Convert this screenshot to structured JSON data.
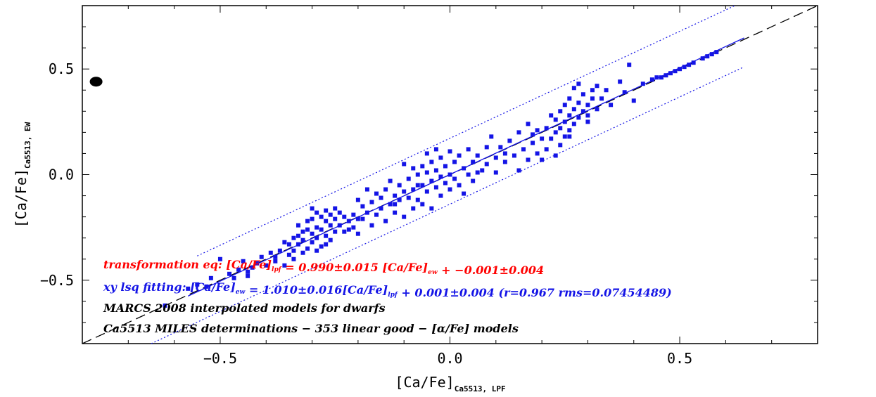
{
  "chart_data": {
    "type": "scatter",
    "title": "",
    "xlabel": {
      "main": "[Ca/Fe]",
      "sub": "Ca5513, LPF"
    },
    "ylabel": {
      "main": "[Ca/Fe]",
      "sub": "Ca5513, EW"
    },
    "xlim": [
      -0.8,
      0.8
    ],
    "ylim": [
      -0.8,
      0.8
    ],
    "x_ticks": [
      -0.5,
      0.0,
      0.5
    ],
    "y_ticks": [
      -0.5,
      0.0,
      0.5
    ],
    "x_tick_labels": [
      "−0.5",
      "0.0",
      "0.5"
    ],
    "y_tick_labels": [
      "−0.5",
      "0.0",
      "0.5"
    ],
    "grid": false,
    "colors": {
      "points": "#1414e6",
      "fit": "#1414e6",
      "identity": "#000000",
      "transformation_text": "#ff0000",
      "fit_text": "#1414e6",
      "text": "#000000"
    },
    "marker_reference": {
      "x": -0.77,
      "y": 0.44
    },
    "identity_line": {
      "x": [
        -0.8,
        0.8
      ],
      "y": [
        -0.8,
        0.8
      ],
      "style": "dashed"
    },
    "fit_line": {
      "x": [
        -0.57,
        0.64
      ],
      "y": [
        -0.575,
        0.647
      ],
      "style": "solid"
    },
    "rms_band_upper": {
      "x": [
        -0.55,
        0.62
      ],
      "y": [
        -0.385,
        0.8
      ],
      "style": "dotted"
    },
    "rms_band_lower": {
      "x": [
        -0.65,
        0.64
      ],
      "y": [
        -0.8,
        0.51
      ],
      "style": "dotted"
    },
    "annotations": [
      {
        "color": "#ff0000",
        "parts": [
          {
            "t": "transformation eq: [Ca/Fe]"
          },
          {
            "t": "lpf",
            "sub": true
          },
          {
            "t": " = 0.990±0.015 [Ca/Fe]"
          },
          {
            "t": "ew",
            "sub": true
          },
          {
            "t": " + −0.001±0.004"
          }
        ]
      },
      {
        "color": "#1414e6",
        "parts": [
          {
            "t": "xy lsq fitting: [Ca/Fe]"
          },
          {
            "t": "ew",
            "sub": true
          },
          {
            "t": " = 1.010±0.016[Ca/Fe]"
          },
          {
            "t": "lpf",
            "sub": true
          },
          {
            "t": " + 0.001±0.004 (r=0.967 rms=0.07454489)"
          }
        ]
      },
      {
        "color": "#000000",
        "parts": [
          {
            "t": "MARCS 2008 interpolated models for dwarfs"
          }
        ]
      },
      {
        "color": "#000000",
        "parts": [
          {
            "t": "Ca5513 MILES determinations − 353 linear good − [α/Fe] models"
          }
        ]
      }
    ],
    "series": [
      {
        "values": [
          [
            -0.62,
            -0.62
          ],
          [
            -0.57,
            -0.54
          ],
          [
            -0.55,
            -0.52
          ],
          [
            -0.53,
            -0.53
          ],
          [
            -0.52,
            -0.49
          ],
          [
            -0.5,
            -0.4
          ],
          [
            -0.48,
            -0.47
          ],
          [
            -0.47,
            -0.49
          ],
          [
            -0.46,
            -0.45
          ],
          [
            -0.45,
            -0.41
          ],
          [
            -0.44,
            -0.48
          ],
          [
            -0.43,
            -0.44
          ],
          [
            -0.42,
            -0.42
          ],
          [
            -0.41,
            -0.39
          ],
          [
            -0.4,
            -0.43
          ],
          [
            -0.39,
            -0.37
          ],
          [
            -0.38,
            -0.41
          ],
          [
            -0.37,
            -0.36
          ],
          [
            -0.36,
            -0.43
          ],
          [
            -0.35,
            -0.38
          ],
          [
            -0.35,
            -0.33
          ],
          [
            -0.34,
            -0.36
          ],
          [
            -0.34,
            -0.4
          ],
          [
            -0.33,
            -0.24
          ],
          [
            -0.33,
            -0.29
          ],
          [
            -0.33,
            -0.33
          ],
          [
            -0.32,
            -0.27
          ],
          [
            -0.32,
            -0.31
          ],
          [
            -0.32,
            -0.37
          ],
          [
            -0.31,
            -0.22
          ],
          [
            -0.31,
            -0.26
          ],
          [
            -0.31,
            -0.35
          ],
          [
            -0.3,
            -0.16
          ],
          [
            -0.3,
            -0.21
          ],
          [
            -0.3,
            -0.28
          ],
          [
            -0.3,
            -0.32
          ],
          [
            -0.29,
            -0.18
          ],
          [
            -0.29,
            -0.25
          ],
          [
            -0.29,
            -0.3
          ],
          [
            -0.28,
            -0.2
          ],
          [
            -0.28,
            -0.26
          ],
          [
            -0.28,
            -0.34
          ],
          [
            -0.27,
            -0.17
          ],
          [
            -0.27,
            -0.22
          ],
          [
            -0.27,
            -0.29
          ],
          [
            -0.26,
            -0.19
          ],
          [
            -0.26,
            -0.24
          ],
          [
            -0.26,
            -0.31
          ],
          [
            -0.25,
            -0.16
          ],
          [
            -0.25,
            -0.21
          ],
          [
            -0.25,
            -0.27
          ],
          [
            -0.24,
            -0.18
          ],
          [
            -0.24,
            -0.24
          ],
          [
            -0.23,
            -0.2
          ],
          [
            -0.23,
            -0.27
          ],
          [
            -0.22,
            -0.22
          ],
          [
            -0.21,
            -0.19
          ],
          [
            -0.21,
            -0.25
          ],
          [
            -0.2,
            -0.12
          ],
          [
            -0.2,
            -0.28
          ],
          [
            -0.19,
            -0.15
          ],
          [
            -0.19,
            -0.21
          ],
          [
            -0.18,
            -0.07
          ],
          [
            -0.18,
            -0.18
          ],
          [
            -0.17,
            -0.13
          ],
          [
            -0.17,
            -0.24
          ],
          [
            -0.16,
            -0.09
          ],
          [
            -0.16,
            -0.19
          ],
          [
            -0.15,
            -0.11
          ],
          [
            -0.15,
            -0.16
          ],
          [
            -0.14,
            -0.07
          ],
          [
            -0.14,
            -0.22
          ],
          [
            -0.13,
            -0.03
          ],
          [
            -0.13,
            -0.14
          ],
          [
            -0.12,
            -0.1
          ],
          [
            -0.12,
            -0.18
          ],
          [
            -0.11,
            -0.05
          ],
          [
            -0.11,
            -0.12
          ],
          [
            -0.1,
            0.05
          ],
          [
            -0.1,
            -0.08
          ],
          [
            -0.1,
            -0.2
          ],
          [
            -0.09,
            -0.02
          ],
          [
            -0.09,
            -0.11
          ],
          [
            -0.08,
            0.03
          ],
          [
            -0.08,
            -0.07
          ],
          [
            -0.08,
            -0.16
          ],
          [
            -0.07,
            0.0
          ],
          [
            -0.07,
            -0.12
          ],
          [
            -0.06,
            0.04
          ],
          [
            -0.06,
            -0.05
          ],
          [
            -0.06,
            -0.14
          ],
          [
            -0.05,
            0.1
          ],
          [
            -0.05,
            0.01
          ],
          [
            -0.05,
            -0.08
          ],
          [
            -0.04,
            0.06
          ],
          [
            -0.04,
            -0.03
          ],
          [
            -0.04,
            -0.16
          ],
          [
            -0.03,
            0.12
          ],
          [
            -0.03,
            0.02
          ],
          [
            -0.03,
            -0.06
          ],
          [
            -0.02,
            0.08
          ],
          [
            -0.02,
            -0.01
          ],
          [
            -0.02,
            -0.1
          ],
          [
            -0.01,
            0.04
          ],
          [
            -0.01,
            -0.04
          ],
          [
            0.0,
            0.11
          ],
          [
            0.0,
            0.0
          ],
          [
            0.0,
            -0.07
          ],
          [
            0.01,
            0.06
          ],
          [
            0.01,
            -0.02
          ],
          [
            0.02,
            0.09
          ],
          [
            0.02,
            -0.05
          ],
          [
            0.03,
            0.03
          ],
          [
            0.03,
            -0.09
          ],
          [
            0.04,
            0.12
          ],
          [
            0.04,
            0.0
          ],
          [
            0.05,
            0.06
          ],
          [
            0.05,
            -0.03
          ],
          [
            0.06,
            0.09
          ],
          [
            0.07,
            0.02
          ],
          [
            0.08,
            0.13
          ],
          [
            0.08,
            0.05
          ],
          [
            0.09,
            0.18
          ],
          [
            0.1,
            0.08
          ],
          [
            0.1,
            0.01
          ],
          [
            0.11,
            0.13
          ],
          [
            0.12,
            0.06
          ],
          [
            0.13,
            0.16
          ],
          [
            0.14,
            0.09
          ],
          [
            0.15,
            0.2
          ],
          [
            0.15,
            0.02
          ],
          [
            0.16,
            0.12
          ],
          [
            0.17,
            0.07
          ],
          [
            0.17,
            0.24
          ],
          [
            0.18,
            0.15
          ],
          [
            0.19,
            0.1
          ],
          [
            0.19,
            0.21
          ],
          [
            0.2,
            0.17
          ],
          [
            0.2,
            0.07
          ],
          [
            0.21,
            0.22
          ],
          [
            0.21,
            0.12
          ],
          [
            0.22,
            0.28
          ],
          [
            0.22,
            0.17
          ],
          [
            0.23,
            0.09
          ],
          [
            0.23,
            0.26
          ],
          [
            0.23,
            0.2
          ],
          [
            0.24,
            0.3
          ],
          [
            0.24,
            0.14
          ],
          [
            0.24,
            0.22
          ],
          [
            0.25,
            0.33
          ],
          [
            0.25,
            0.25
          ],
          [
            0.25,
            0.18
          ],
          [
            0.26,
            0.36
          ],
          [
            0.26,
            0.28
          ],
          [
            0.26,
            0.21
          ],
          [
            0.27,
            0.41
          ],
          [
            0.27,
            0.31
          ],
          [
            0.27,
            0.24
          ],
          [
            0.28,
            0.43
          ],
          [
            0.28,
            0.34
          ],
          [
            0.28,
            0.27
          ],
          [
            0.29,
            0.3
          ],
          [
            0.29,
            0.38
          ],
          [
            0.3,
            0.33
          ],
          [
            0.3,
            0.25
          ],
          [
            0.31,
            0.4
          ],
          [
            0.31,
            0.36
          ],
          [
            0.32,
            0.42
          ],
          [
            0.32,
            0.31
          ],
          [
            0.33,
            0.36
          ],
          [
            0.34,
            0.4
          ],
          [
            0.35,
            0.33
          ],
          [
            0.37,
            0.44
          ],
          [
            0.38,
            0.39
          ],
          [
            0.39,
            0.52
          ],
          [
            0.4,
            0.35
          ],
          [
            0.42,
            0.43
          ],
          [
            0.44,
            0.45
          ],
          [
            0.45,
            0.46
          ],
          [
            0.46,
            0.46
          ],
          [
            0.47,
            0.47
          ],
          [
            0.48,
            0.48
          ],
          [
            0.49,
            0.49
          ],
          [
            0.5,
            0.5
          ],
          [
            0.51,
            0.51
          ],
          [
            0.52,
            0.52
          ],
          [
            0.53,
            0.53
          ],
          [
            0.55,
            0.55
          ],
          [
            0.56,
            0.56
          ],
          [
            0.57,
            0.57
          ],
          [
            0.58,
            0.58
          ],
          [
            -0.44,
            -0.46
          ],
          [
            -0.38,
            -0.39
          ],
          [
            -0.36,
            -0.32
          ],
          [
            -0.34,
            -0.3
          ],
          [
            -0.29,
            -0.36
          ],
          [
            -0.27,
            -0.33
          ],
          [
            -0.22,
            -0.26
          ],
          [
            -0.2,
            -0.21
          ],
          [
            -0.12,
            -0.14
          ],
          [
            -0.07,
            -0.05
          ],
          [
            0.06,
            0.01
          ],
          [
            0.12,
            0.1
          ],
          [
            0.18,
            0.19
          ],
          [
            0.26,
            0.18
          ],
          [
            0.3,
            0.28
          ]
        ]
      }
    ]
  }
}
